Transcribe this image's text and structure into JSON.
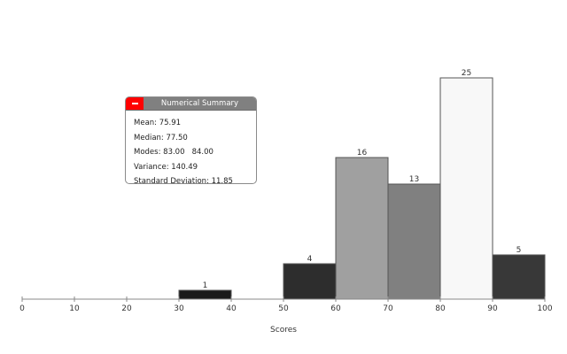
{
  "summary_panel": {
    "title": "Numerical Summary",
    "collapse_icon": "minus-icon",
    "collapse_color": "#ff0000",
    "stats": [
      {
        "label": "Mean:",
        "value": "75.91"
      },
      {
        "label": "Median:",
        "value": "77.50"
      },
      {
        "label": "Modes:",
        "value": "83.00   84.00"
      },
      {
        "label": "Variance:",
        "value": "140.49"
      },
      {
        "label": "Standard Deviation:",
        "value": "11.85"
      }
    ]
  },
  "chart_data": {
    "type": "bar",
    "title": "",
    "xlabel": "Scores",
    "ylabel": "",
    "xlim": [
      0,
      100
    ],
    "x_ticks": [
      0,
      10,
      20,
      30,
      40,
      50,
      60,
      70,
      80,
      90,
      100
    ],
    "grid": false,
    "bins": [
      {
        "start": 30,
        "end": 40,
        "count": 1,
        "color": "#1a1a1a"
      },
      {
        "start": 50,
        "end": 60,
        "count": 4,
        "color": "#2d2d2d"
      },
      {
        "start": 60,
        "end": 70,
        "count": 16,
        "color": "#a0a0a0"
      },
      {
        "start": 70,
        "end": 80,
        "count": 13,
        "color": "#808080"
      },
      {
        "start": 80,
        "end": 90,
        "count": 25,
        "color": "#f8f8f8"
      },
      {
        "start": 90,
        "end": 100,
        "count": 5,
        "color": "#383838"
      }
    ]
  }
}
